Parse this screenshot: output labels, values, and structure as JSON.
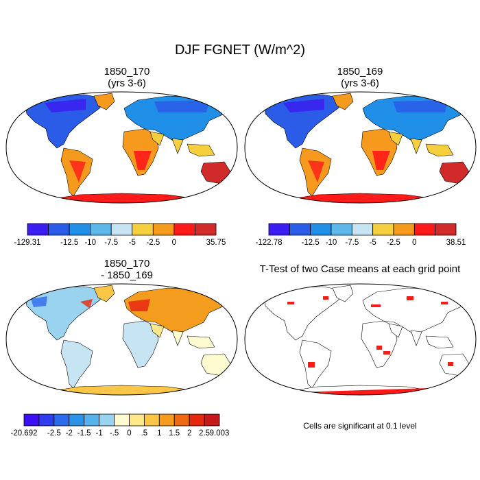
{
  "title": "DJF FGNET (W/m^2)",
  "panels": [
    {
      "title1": "1850_170",
      "title2": "(yrs 3-6)"
    },
    {
      "title1": "1850_169",
      "title2": "(yrs 3-6)"
    },
    {
      "title1": "1850_170",
      "title2": "- 1850_169"
    },
    {
      "title1": "T-Test of two Case means at each grid point",
      "title2": ""
    }
  ],
  "colorbars": [
    {
      "labels": [
        "-129.31",
        "-12.5",
        "-10",
        "-7.5",
        "-5",
        "-2.5",
        "0",
        "35.75"
      ],
      "colors": [
        "#3b1df0",
        "#2a5ce8",
        "#1f8fe8",
        "#5cb8ea",
        "#c6e4f2",
        "#f5cf3e",
        "#f59a1c",
        "#ff1a1a",
        "#d02a2a"
      ]
    },
    {
      "labels": [
        "-122.78",
        "-12.5",
        "-10",
        "-7.5",
        "-5",
        "-2.5",
        "0",
        "38.51"
      ],
      "colors": [
        "#3b1df0",
        "#2a5ce8",
        "#1f8fe8",
        "#5cb8ea",
        "#c6e4f2",
        "#f5cf3e",
        "#f59a1c",
        "#ff1a1a",
        "#d02a2a"
      ]
    },
    {
      "labels": [
        "-20.692",
        "-2.5",
        "-2",
        "-1.5",
        "-1",
        "-.5",
        "0",
        ".5",
        "1",
        "1.5",
        "2",
        "2.5",
        "9.003"
      ],
      "colors": [
        "#3b10f5",
        "#2f3cf0",
        "#2e6aec",
        "#2c93e8",
        "#57b2ec",
        "#9ad3f0",
        "#fffbd0",
        "#fde88c",
        "#f9c745",
        "#f49c1e",
        "#ee6a12",
        "#e8280e",
        "#c8171a"
      ]
    }
  ],
  "ttest_note": "Cells are significant at 0.1 level"
}
